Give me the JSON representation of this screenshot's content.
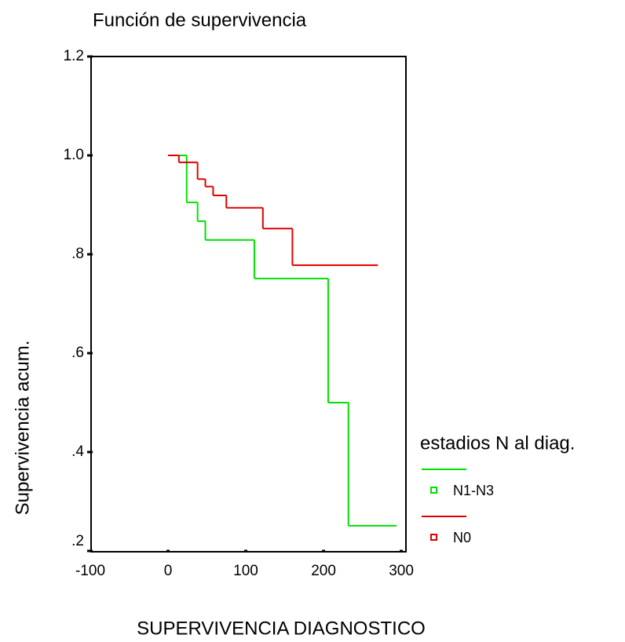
{
  "chart_data": {
    "type": "step",
    "title": "Función de supervivencia",
    "x_label": "SUPERVIVENCIA DIAGNOSTICO",
    "y_label": "Supervivencia acum.",
    "legend_title": "estadios N al diag.",
    "xlim": [
      -100,
      306
    ],
    "ylim": [
      0.2,
      1.2
    ],
    "xticks": [
      -100,
      0,
      100,
      200,
      300
    ],
    "yticks": [
      {
        "value": 1.2,
        "label": "1.2"
      },
      {
        "value": 1.0,
        "label": "1.0"
      },
      {
        "value": 0.8,
        "label": ".8"
      },
      {
        "value": 0.6,
        "label": ".6"
      },
      {
        "value": 0.4,
        "label": ".4"
      },
      {
        "value": 0.2,
        "label": ".2"
      }
    ],
    "series": [
      {
        "name": "N1-N3",
        "color": "#00e000",
        "x": [
          2,
          24,
          38,
          48,
          111,
          206,
          232,
          294
        ],
        "values": [
          1.0,
          0.905,
          0.867,
          0.829,
          0.751,
          0.5,
          0.251,
          0.251
        ]
      },
      {
        "name": "N0",
        "color": "#e00000",
        "x": [
          0,
          14,
          38,
          48,
          58,
          75,
          122,
          160,
          270
        ],
        "values": [
          1.0,
          0.986,
          0.952,
          0.937,
          0.919,
          0.894,
          0.852,
          0.778,
          0.778
        ]
      }
    ]
  }
}
